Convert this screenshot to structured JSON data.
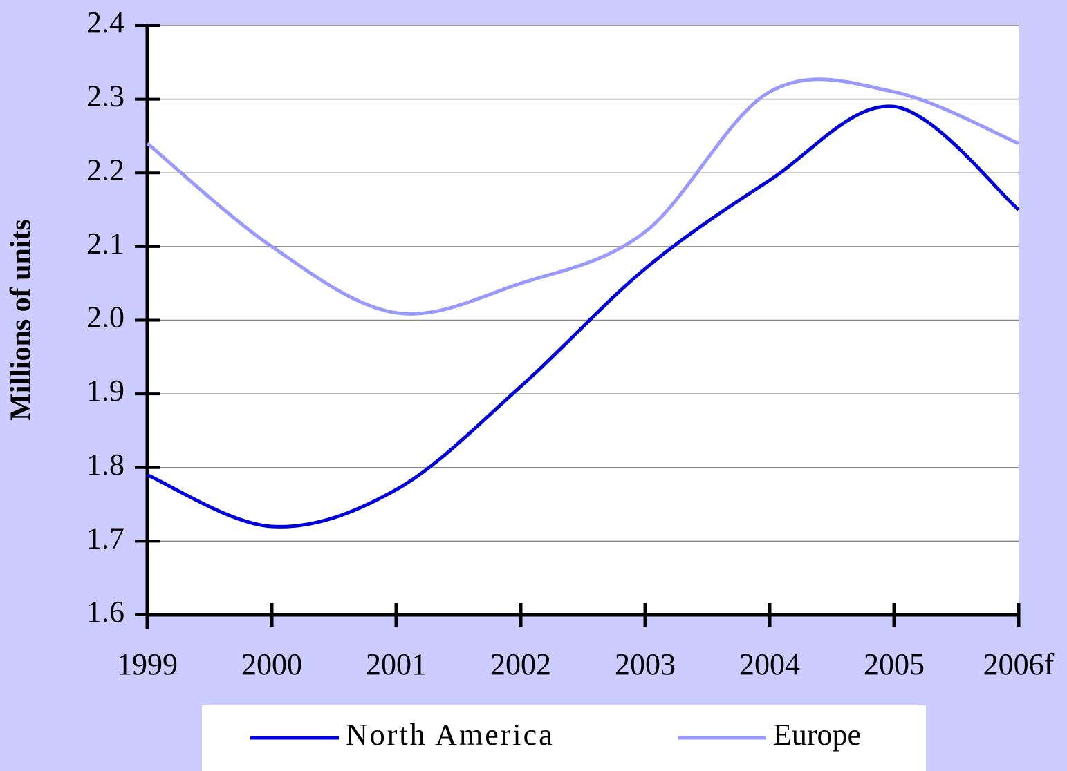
{
  "chart_data": {
    "type": "line",
    "ylabel": "Millions of units",
    "categories": [
      "1999",
      "2000",
      "2001",
      "2002",
      "2003",
      "2004",
      "2005",
      "2006f"
    ],
    "series": [
      {
        "name": "North America",
        "color": "#0000dd",
        "values": [
          1.79,
          1.72,
          1.77,
          1.91,
          2.07,
          2.19,
          2.29,
          2.15
        ]
      },
      {
        "name": "Europe",
        "color": "#9999ff",
        "values": [
          2.24,
          2.1,
          2.01,
          2.05,
          2.12,
          2.31,
          2.31,
          2.24
        ]
      }
    ],
    "ylim": [
      1.6,
      2.4
    ],
    "yticks": [
      1.6,
      1.7,
      1.8,
      1.9,
      {
        "value": 2,
        "label": "2.0"
      },
      2.1,
      2.2,
      2.3,
      2.4
    ],
    "grid": true,
    "smooth": true,
    "legend": "bottom"
  }
}
